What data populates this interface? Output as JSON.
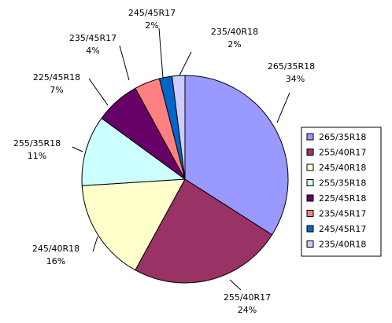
{
  "chart_data": {
    "type": "pie",
    "title": "",
    "legend_position": "right",
    "slices": [
      {
        "label": "265/35R18",
        "value": 34,
        "pct_label": "34%",
        "color": "#9999ff"
      },
      {
        "label": "255/40R17",
        "value": 24,
        "pct_label": "24%",
        "color": "#993366"
      },
      {
        "label": "245/40R18",
        "value": 16,
        "pct_label": "16%",
        "color": "#ffffcc"
      },
      {
        "label": "255/35R18",
        "value": 11,
        "pct_label": "11%",
        "color": "#ccffff"
      },
      {
        "label": "225/45R18",
        "value": 7,
        "pct_label": "7%",
        "color": "#660066"
      },
      {
        "label": "235/45R17",
        "value": 4,
        "pct_label": "4%",
        "color": "#ff8080"
      },
      {
        "label": "245/45R17",
        "value": 2,
        "pct_label": "2%",
        "color": "#0066cc"
      },
      {
        "label": "235/40R18",
        "value": 2,
        "pct_label": "2%",
        "color": "#ccccff"
      }
    ]
  }
}
